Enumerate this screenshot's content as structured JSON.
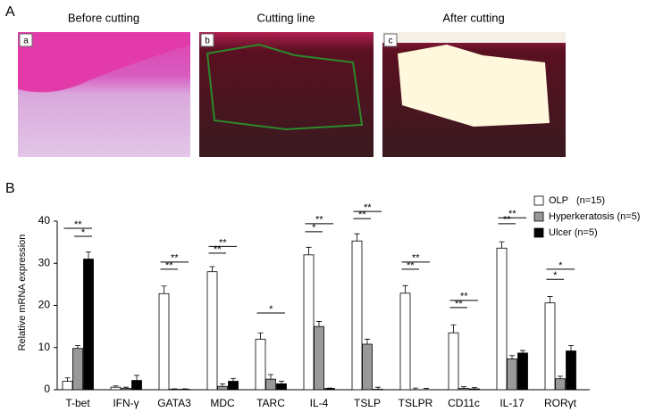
{
  "panel_a": {
    "label": "A",
    "images": [
      {
        "title": "Before cutting",
        "tag": "a"
      },
      {
        "title": "Cutting line",
        "tag": "b"
      },
      {
        "title": "After cutting",
        "tag": "c"
      }
    ]
  },
  "chart_data": {
    "type": "bar",
    "panel_label": "B",
    "ylabel": "Relative mRNA expression",
    "categories": [
      "T-bet",
      "IFN-γ",
      "GATA3",
      "MDC",
      "TARC",
      "IL-4",
      "TSLP",
      "TSLPR",
      "CD11c",
      "IL-17",
      "RORγt"
    ],
    "series": [
      {
        "name": "OLP   (n=15)",
        "color": "#ffffff",
        "values": [
          2,
          0.6,
          22.8,
          28,
          12,
          32,
          35.3,
          22.9,
          13.5,
          33.6,
          20.6
        ],
        "errors": [
          0.8,
          0.3,
          1.8,
          1.2,
          1.5,
          1.8,
          1.7,
          1.8,
          1.9,
          1.5,
          1.5
        ]
      },
      {
        "name": "Hyperkeratosis (n=5)",
        "color": "#999999",
        "values": [
          9.8,
          0.3,
          0.1,
          0.8,
          2.5,
          15,
          10.8,
          0,
          0.3,
          7.3,
          2.6
        ],
        "errors": [
          0.7,
          0.3,
          0.1,
          0.6,
          1.1,
          1.2,
          1.2,
          0.4,
          0.4,
          0.8,
          0.6
        ]
      },
      {
        "name": "Ulcer (n=5)",
        "color": "#000000",
        "values": [
          31,
          2.2,
          0.1,
          2,
          1.4,
          0.3,
          0.1,
          0,
          0.2,
          8.7,
          9.2
        ],
        "errors": [
          1.7,
          1.2,
          0.1,
          0.7,
          0.6,
          0.1,
          0.5,
          0.3,
          0.3,
          0.6,
          1.3
        ]
      }
    ],
    "ylim": [
      0,
      40
    ],
    "yticks": [
      0,
      10,
      20,
      30,
      40
    ],
    "annotations": [
      {
        "category": 0,
        "text": "**",
        "y": 38.3,
        "from": 0,
        "to": 2
      },
      {
        "category": 0,
        "text": "*",
        "y": 36.4,
        "from": 1,
        "to": 2
      },
      {
        "category": 2,
        "text": "**",
        "y": 30.3,
        "from": 0,
        "to": 2
      },
      {
        "category": 2,
        "text": "**",
        "y": 28.6,
        "from": 0,
        "to": 1
      },
      {
        "category": 3,
        "text": "**",
        "y": 34,
        "from": 0,
        "to": 2
      },
      {
        "category": 3,
        "text": "**",
        "y": 32.4,
        "from": 0,
        "to": 1
      },
      {
        "category": 4,
        "text": "*",
        "y": 18.2,
        "from": 0,
        "to": 2
      },
      {
        "category": 5,
        "text": "**",
        "y": 39.4,
        "from": 0,
        "to": 2
      },
      {
        "category": 5,
        "text": "*",
        "y": 37.5,
        "from": 0,
        "to": 1
      },
      {
        "category": 6,
        "text": "**",
        "y": 42.3,
        "from": 0,
        "to": 2
      },
      {
        "category": 6,
        "text": "**",
        "y": 40.6,
        "from": 0,
        "to": 1
      },
      {
        "category": 7,
        "text": "**",
        "y": 30.3,
        "from": 0,
        "to": 2
      },
      {
        "category": 7,
        "text": "**",
        "y": 28.6,
        "from": 0,
        "to": 1
      },
      {
        "category": 8,
        "text": "**",
        "y": 21.2,
        "from": 0,
        "to": 2
      },
      {
        "category": 8,
        "text": "**",
        "y": 19.5,
        "from": 0,
        "to": 1
      },
      {
        "category": 9,
        "text": "**",
        "y": 40.8,
        "from": 0,
        "to": 2
      },
      {
        "category": 9,
        "text": "**",
        "y": 39.4,
        "from": 0,
        "to": 1
      },
      {
        "category": 10,
        "text": "*",
        "y": 28.6,
        "from": 0,
        "to": 2
      },
      {
        "category": 10,
        "text": "*",
        "y": 26.2,
        "from": 0,
        "to": 1
      }
    ]
  }
}
